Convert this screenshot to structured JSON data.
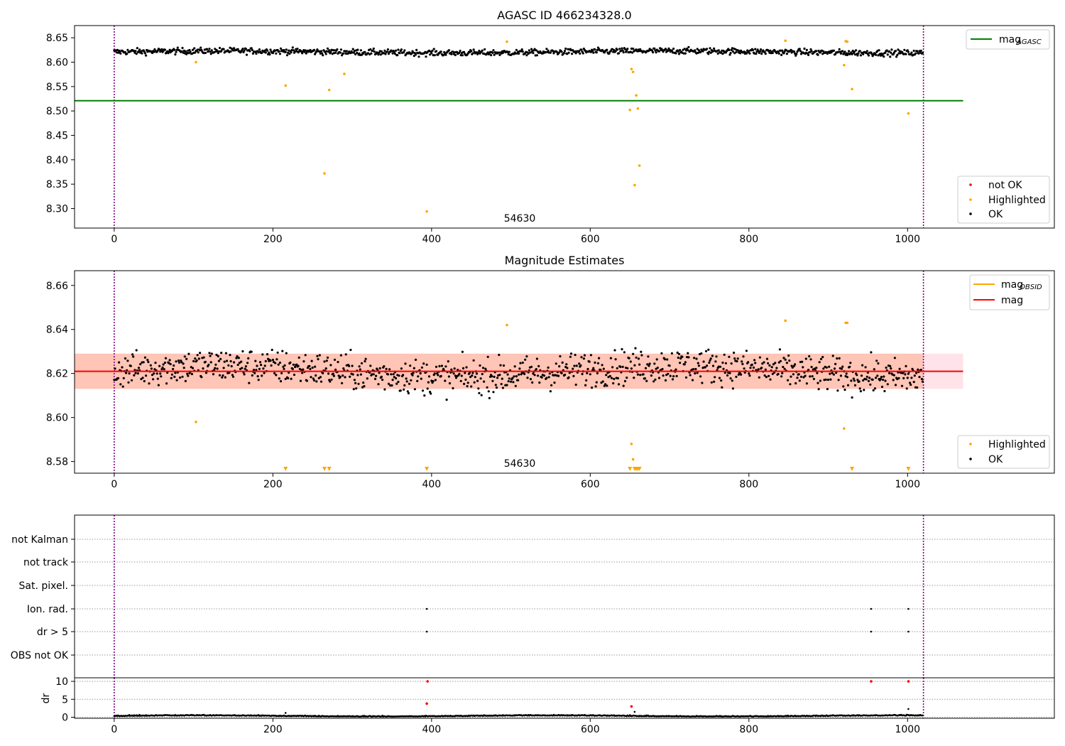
{
  "chart_data": [
    {
      "type": "scatter",
      "title": "AGASC ID 466234328.0",
      "xlim": [
        -50,
        1185
      ],
      "ylim": [
        8.26,
        8.675
      ],
      "xticks": [
        0,
        200,
        400,
        600,
        800,
        1000
      ],
      "yticks": [
        8.3,
        8.35,
        8.4,
        8.45,
        8.5,
        8.55,
        8.6,
        8.65
      ],
      "annotation": {
        "text": "54630",
        "x": 510,
        "y": 8.28
      },
      "vlines": [
        0,
        1020
      ],
      "hline": {
        "name": "mag_AGASC",
        "value": 8.521,
        "xmax": 1070,
        "color": "#008000"
      },
      "ok_points": {
        "name": "OK",
        "color": "#000000",
        "n": 1020,
        "baseline": 8.621,
        "scatter": 0.006
      },
      "highlighted_points": {
        "name": "Highlighted",
        "color": "#ffa500",
        "x": [
          103,
          216,
          265,
          271,
          290,
          394,
          495,
          650,
          652,
          654,
          656,
          658,
          660,
          662,
          846,
          920,
          922,
          924,
          930,
          1001
        ],
        "y": [
          8.6,
          8.552,
          8.372,
          8.543,
          8.576,
          8.294,
          8.642,
          8.502,
          8.586,
          8.58,
          8.348,
          8.532,
          8.505,
          8.388,
          8.644,
          8.594,
          8.643,
          8.642,
          8.545,
          8.495
        ]
      },
      "legend": [
        {
          "label": "mag",
          "sub": "AGASC",
          "kind": "line",
          "color": "#008000"
        },
        {
          "label": "not OK",
          "kind": "point",
          "color": "#ff0000"
        },
        {
          "label": "Highlighted",
          "kind": "point",
          "color": "#ffa500"
        },
        {
          "label": "OK",
          "kind": "point",
          "color": "#000000"
        }
      ]
    },
    {
      "type": "scatter",
      "title": "Magnitude Estimates",
      "xlim": [
        -50,
        1185
      ],
      "ylim": [
        8.5747,
        8.6667
      ],
      "xticks": [
        0,
        200,
        400,
        600,
        800,
        1000
      ],
      "yticks": [
        8.58,
        8.6,
        8.62,
        8.64,
        8.66
      ],
      "annotation": {
        "text": "54630",
        "x": 510,
        "y": 8.5775
      },
      "vlines": [
        0,
        1020
      ],
      "mag_line": {
        "name": "mag",
        "value": 8.621,
        "xmax": 1070,
        "color": "#ff0000"
      },
      "bands": [
        {
          "y0": 8.613,
          "y1": 8.629,
          "xmax": 1070,
          "color": "#ffc0cb"
        },
        {
          "y0": 8.613,
          "y1": 8.629,
          "xmax": 1020,
          "color": "#ffa07a"
        }
      ],
      "ok_points": {
        "name": "OK",
        "color": "#000000",
        "n": 1020,
        "baseline": 8.621,
        "scatter": 0.0075
      },
      "highlighted_points": {
        "name": "Highlighted",
        "color": "#ffa500",
        "x": [
          103,
          495,
          652,
          654,
          846,
          920,
          922,
          924
        ],
        "y": [
          8.598,
          8.642,
          8.588,
          8.581,
          8.644,
          8.595,
          8.643,
          8.643
        ]
      },
      "clipped_markers_x": [
        216,
        265,
        271,
        394,
        650,
        656,
        658,
        660,
        662,
        930,
        1001
      ],
      "legend": [
        {
          "label": "mag",
          "sub": "OBSID",
          "kind": "line",
          "color": "#ffa500"
        },
        {
          "label": "mag",
          "kind": "line",
          "color": "#ff0000"
        },
        {
          "label": "Highlighted",
          "kind": "point",
          "color": "#ffa500"
        },
        {
          "label": "OK",
          "kind": "point",
          "color": "#000000"
        }
      ]
    },
    {
      "type": "scatter",
      "title": "",
      "xlim": [
        -50,
        1185
      ],
      "flag_rows": [
        "not Kalman",
        "not track",
        "Sat. pixel.",
        "Ion. rad.",
        "dr > 5",
        "OBS not OK"
      ],
      "flags": [
        {
          "row": "Ion. rad.",
          "x": [
            394,
            954,
            1001
          ]
        },
        {
          "row": "dr > 5",
          "x": [
            394,
            954,
            1001
          ]
        }
      ],
      "vlines": [
        0,
        1020
      ]
    },
    {
      "type": "scatter",
      "title": "",
      "ylabel": "dr",
      "xlim": [
        -50,
        1185
      ],
      "ylim": [
        -0.3,
        11
      ],
      "xticks": [
        0,
        200,
        400,
        600,
        800,
        1000
      ],
      "yticks": [
        0,
        5,
        10
      ],
      "vlines": [
        0,
        1020
      ],
      "ok_points": {
        "color": "#000000",
        "n": 1020,
        "baseline": 0.3,
        "scatter": 0.2
      },
      "not_ok_points": {
        "color": "#ff0000",
        "x": [
          394,
          395,
          652,
          954,
          1001
        ],
        "y": [
          3.8,
          10.0,
          3.0,
          10.0,
          10.0
        ]
      },
      "extra_points": {
        "x": [
          216,
          656,
          1001
        ],
        "y": [
          1.2,
          1.5,
          2.3
        ]
      }
    }
  ]
}
